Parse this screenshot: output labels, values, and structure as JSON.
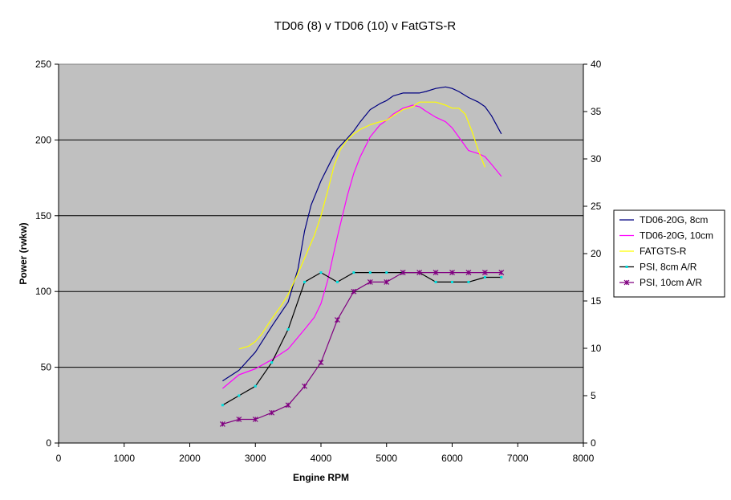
{
  "chart_data": {
    "type": "line",
    "title": "TD06 (8) v TD06 (10) v FatGTS-R",
    "xlabel": "Engine RPM",
    "ylabel": "Power (rwkw)",
    "y2label": "",
    "xlim": [
      0,
      8000
    ],
    "ylim": [
      0,
      250
    ],
    "y2lim": [
      0,
      40
    ],
    "xticks": [
      0,
      1000,
      2000,
      3000,
      4000,
      5000,
      6000,
      7000,
      8000
    ],
    "yticks": [
      0,
      50,
      100,
      150,
      200,
      250
    ],
    "y2ticks": [
      0,
      5,
      10,
      15,
      20,
      25,
      30,
      35,
      40
    ],
    "grid": "horizontal at 50, 100, 150, 200",
    "legend_position": "right",
    "plot_background": "#c0c0c0",
    "series": [
      {
        "name": "TD06-20G, 8cm",
        "axis": "left",
        "color": "#000080",
        "marker": "none",
        "x": [
          2500,
          2750,
          3000,
          3250,
          3500,
          3650,
          3750,
          3850,
          4000,
          4150,
          4250,
          4400,
          4500,
          4600,
          4750,
          4900,
          5000,
          5100,
          5250,
          5350,
          5500,
          5600,
          5750,
          5900,
          6000,
          6100,
          6250,
          6400,
          6500,
          6600,
          6750
        ],
        "y": [
          41,
          48,
          60,
          77,
          93,
          115,
          140,
          157,
          173,
          186,
          194,
          201,
          206,
          212,
          220,
          224,
          226,
          229,
          231,
          231,
          231,
          232,
          234,
          235,
          234,
          232,
          228,
          225,
          222,
          216,
          204
        ]
      },
      {
        "name": "TD06-20G, 10cm",
        "axis": "left",
        "color": "#ff00ff",
        "marker": "none",
        "x": [
          2500,
          2750,
          3000,
          3250,
          3500,
          3750,
          3900,
          4000,
          4100,
          4250,
          4400,
          4500,
          4600,
          4750,
          4900,
          5000,
          5100,
          5250,
          5400,
          5500,
          5600,
          5750,
          5900,
          6000,
          6100,
          6250,
          6400,
          6500,
          6600,
          6750
        ],
        "y": [
          36,
          45,
          49,
          55,
          62,
          75,
          83,
          92,
          107,
          136,
          163,
          178,
          189,
          202,
          210,
          213,
          217,
          221,
          223,
          222,
          219,
          215,
          212,
          208,
          202,
          193,
          191,
          189,
          184,
          176
        ]
      },
      {
        "name": "FATGTS-R",
        "axis": "left",
        "color": "#ffff00",
        "marker": "none",
        "x": [
          2750,
          2900,
          3000,
          3100,
          3250,
          3400,
          3500,
          3650,
          3750,
          3900,
          4000,
          4100,
          4200,
          4300,
          4400,
          4500,
          4600,
          4750,
          4900,
          5000,
          5100,
          5250,
          5400,
          5500,
          5600,
          5750,
          5900,
          6000,
          6100,
          6200,
          6300,
          6400,
          6500
        ],
        "y": [
          62,
          64,
          67,
          72,
          82,
          91,
          98,
          112,
          122,
          137,
          150,
          166,
          183,
          194,
          200,
          204,
          207,
          210,
          212,
          213,
          216,
          220,
          222,
          225,
          225,
          225,
          223,
          221,
          221,
          217,
          206,
          193,
          182
        ]
      },
      {
        "name": "PSI, 8cm A/R",
        "axis": "right",
        "color": "#000000",
        "marker": "cyan-dot",
        "marker_color": "#00e0e0",
        "x": [
          2500,
          2750,
          3000,
          3250,
          3500,
          3750,
          4000,
          4250,
          4500,
          4750,
          5000,
          5250,
          5500,
          5750,
          6000,
          6250,
          6500,
          6750
        ],
        "y": [
          4,
          5,
          6,
          8.5,
          12,
          17,
          18,
          17,
          18,
          18,
          18,
          18,
          18,
          17,
          17,
          17,
          17.5,
          17.5
        ]
      },
      {
        "name": "PSI, 10cm A/R",
        "axis": "right",
        "color": "#800080",
        "marker": "asterisk",
        "marker_color": "#800080",
        "x": [
          2500,
          2750,
          3000,
          3250,
          3500,
          3750,
          4000,
          4250,
          4500,
          4750,
          5000,
          5250,
          5500,
          5750,
          6000,
          6250,
          6500,
          6750
        ],
        "y": [
          2,
          2.5,
          2.5,
          3.2,
          4,
          6,
          8.5,
          13,
          16,
          17,
          17,
          18,
          18,
          18,
          18,
          18,
          18,
          18
        ]
      }
    ]
  }
}
